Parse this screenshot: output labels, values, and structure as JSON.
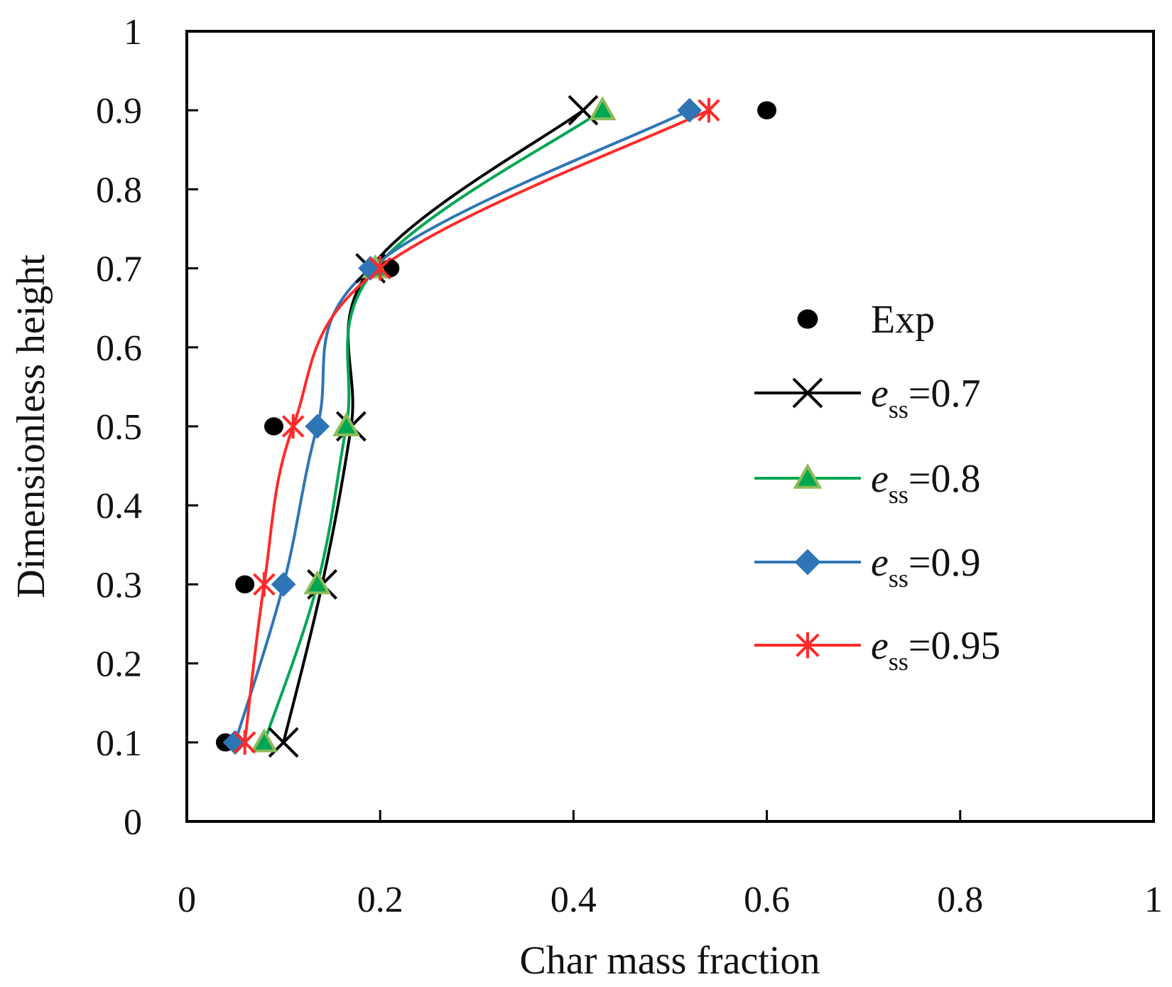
{
  "chart_data": {
    "type": "line",
    "title": "",
    "xlabel": "Char mass fraction",
    "ylabel": "Dimensionless height",
    "xlim": [
      0,
      1
    ],
    "ylim": [
      0,
      1
    ],
    "x_ticks": [
      "0",
      "0.2",
      "0.4",
      "0.6",
      "0.8",
      "1"
    ],
    "y_ticks": [
      "0",
      "0.1",
      "0.2",
      "0.3",
      "0.4",
      "0.5",
      "0.6",
      "0.7",
      "0.8",
      "0.9",
      "1"
    ],
    "grid": false,
    "legend_position": "right-center",
    "series": [
      {
        "name": "Exp",
        "legend_var": "",
        "legend_sub": "",
        "legend_value": "Exp",
        "kind": "scatter",
        "marker": "circle",
        "color": "#000000",
        "x": [
          0.04,
          0.06,
          0.09,
          0.21,
          0.6
        ],
        "y": [
          0.1,
          0.3,
          0.5,
          0.7,
          0.9
        ]
      },
      {
        "name": "ess=0.7",
        "legend_var": "e",
        "legend_sub": "ss",
        "legend_value": "=0.7",
        "kind": "line",
        "marker": "x",
        "color": "#000000",
        "x": [
          0.1,
          0.14,
          0.17,
          0.19,
          0.41
        ],
        "y": [
          0.1,
          0.3,
          0.5,
          0.7,
          0.9
        ]
      },
      {
        "name": "ess=0.8",
        "legend_var": "e",
        "legend_sub": "ss",
        "legend_value": "=0.8",
        "kind": "line",
        "marker": "triangle",
        "color": "#00a651",
        "x": [
          0.08,
          0.135,
          0.165,
          0.195,
          0.43
        ],
        "y": [
          0.1,
          0.3,
          0.5,
          0.7,
          0.9
        ]
      },
      {
        "name": "ess=0.9",
        "legend_var": "e",
        "legend_sub": "ss",
        "legend_value": "=0.9",
        "kind": "line",
        "marker": "diamond",
        "color": "#2e75b6",
        "x": [
          0.05,
          0.1,
          0.135,
          0.19,
          0.52
        ],
        "y": [
          0.1,
          0.3,
          0.5,
          0.7,
          0.9
        ]
      },
      {
        "name": "ess=0.95",
        "legend_var": "e",
        "legend_sub": "ss",
        "legend_value": "=0.95",
        "kind": "line",
        "marker": "asterisk",
        "color": "#ff2a2a",
        "x": [
          0.06,
          0.08,
          0.11,
          0.2,
          0.54
        ],
        "y": [
          0.1,
          0.3,
          0.5,
          0.7,
          0.9
        ]
      }
    ]
  }
}
